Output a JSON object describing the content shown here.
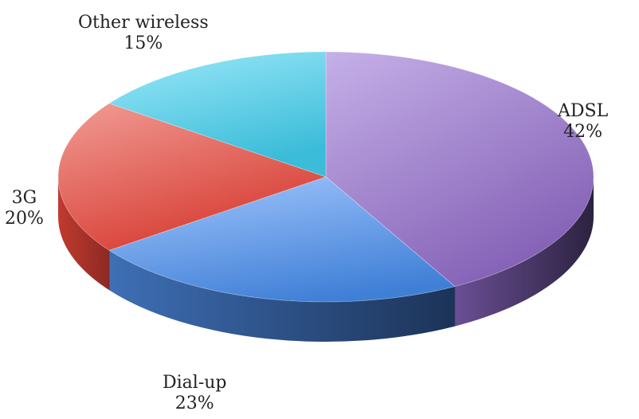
{
  "chart_data": {
    "type": "pie",
    "style": "3d",
    "categories": [
      "ADSL",
      "Dial-up",
      "3G",
      "Other wireless"
    ],
    "values": [
      42,
      23,
      20,
      15
    ],
    "value_labels": [
      "42%",
      "23%",
      "20%",
      "15%"
    ],
    "colors": [
      "#9b7fc9",
      "#4a86d8",
      "#e0554b",
      "#52c8e2"
    ],
    "legend": "none",
    "title": ""
  }
}
